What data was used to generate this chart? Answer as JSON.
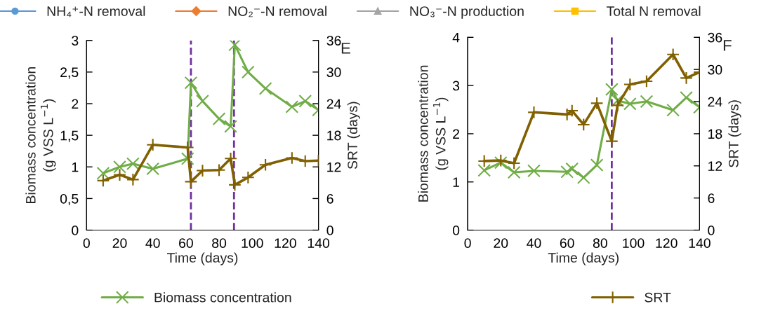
{
  "chart_data": [
    {
      "type": "line",
      "title": "E",
      "xlabel": "Time (days)",
      "ylabel": "Biomass concentration\n(g VSS L$^{−1}$)",
      "y2label": "SRT (days)",
      "xlim": [
        0,
        140
      ],
      "xticks": [
        0,
        20,
        40,
        60,
        80,
        100,
        120,
        140
      ],
      "ylim": [
        0,
        3
      ],
      "yticks": [
        0,
        {
          "value": 0.5,
          "label": "0,5"
        },
        1,
        {
          "value": 1.5,
          "label": "1,5"
        },
        2,
        {
          "value": 2.5,
          "label": "2,5"
        },
        3
      ],
      "y2lim": [
        0,
        36
      ],
      "y2ticks": [
        0,
        6,
        12,
        18,
        24,
        30,
        36
      ],
      "grid": false,
      "legend": "bottom",
      "ref_lines": [
        {
          "axis": "x",
          "value": 63,
          "color": "#7030a0",
          "line_style": "dashed"
        },
        {
          "axis": "x",
          "value": 89,
          "color": "#7030a0",
          "line_style": "dashed"
        }
      ],
      "series": [
        {
          "name": "NH₄⁺-N removal",
          "color": "#5b9bd5",
          "marker": "circle",
          "x": [
            null
          ],
          "values": [
            null
          ]
        },
        {
          "name": "NO₂⁻-N removal",
          "color": "#ed7d31",
          "marker": "diamond",
          "x": [
            null
          ],
          "values": [
            null
          ]
        },
        {
          "name": "Biomass concentration",
          "color": "#70ad47",
          "marker": "x",
          "x": [
            10,
            20,
            28,
            40,
            61,
            63,
            70,
            80,
            87,
            89.5,
            97.5,
            108,
            124,
            132,
            140
          ],
          "values": [
            0.9,
            1.0,
            1.05,
            0.97,
            1.13,
            2.33,
            2.04,
            1.76,
            1.64,
            2.93,
            2.5,
            2.24,
            1.95,
            2.04,
            1.9
          ]
        },
        {
          "name": "SRT",
          "color": "#806000",
          "marker": "cross",
          "axis": "y2",
          "x": [
            10,
            20,
            28,
            40,
            61,
            63,
            70,
            80,
            87,
            89.5,
            97.5,
            108,
            124,
            132,
            140
          ],
          "values": [
            9.4,
            10.5,
            9.6,
            16.2,
            15.7,
            9.2,
            11.3,
            11.4,
            13.6,
            8.6,
            10.0,
            12.4,
            13.7,
            13.1,
            13.2
          ]
        }
      ]
    },
    {
      "type": "line",
      "title": "F",
      "xlabel": "Time (days)",
      "ylabel": "Biomass concentration\n(g VSS L$^{−1}$)",
      "y2label": "SRT (days)",
      "xlim": [
        0,
        140
      ],
      "xticks": [
        0,
        20,
        40,
        60,
        80,
        100,
        120,
        140
      ],
      "ylim": [
        0,
        4
      ],
      "yticks": [
        0,
        1,
        2,
        3,
        4
      ],
      "y2lim": [
        0,
        36
      ],
      "y2ticks": [
        0,
        6,
        12,
        18,
        24,
        30,
        36
      ],
      "grid": false,
      "legend": "top",
      "ref_lines": [
        {
          "axis": "x",
          "value": 87,
          "color": "#7030a0",
          "line_style": "dashed"
        }
      ],
      "series": [
        {
          "name": "NO₃⁻-N production",
          "color": "#a5a5a5",
          "marker": "triangle",
          "x": [
            null
          ],
          "values": [
            null
          ]
        },
        {
          "name": "Total N removal",
          "color": "#ffc000",
          "marker": "square",
          "x": [
            null
          ],
          "values": [
            null
          ]
        },
        {
          "color": "#70ad47",
          "marker": "x",
          "x": [
            10,
            20,
            28,
            40,
            60,
            63,
            70,
            78,
            87,
            90.5,
            98,
            108,
            124,
            132,
            140
          ],
          "values": [
            1.24,
            1.4,
            1.2,
            1.23,
            1.21,
            1.27,
            1.09,
            1.35,
            2.92,
            2.69,
            2.62,
            2.67,
            2.49,
            2.75,
            2.55
          ]
        },
        {
          "color": "#806000",
          "marker": "cross",
          "axis": "y2",
          "x": [
            10,
            20,
            28,
            40,
            60,
            63,
            70,
            78,
            87,
            90.5,
            98,
            108,
            124,
            132,
            140
          ],
          "values": [
            12.9,
            13.0,
            12.5,
            22.0,
            21.6,
            22.3,
            19.7,
            23.7,
            16.6,
            23.3,
            27.2,
            27.8,
            32.8,
            28.4,
            29.5
          ]
        }
      ]
    }
  ]
}
